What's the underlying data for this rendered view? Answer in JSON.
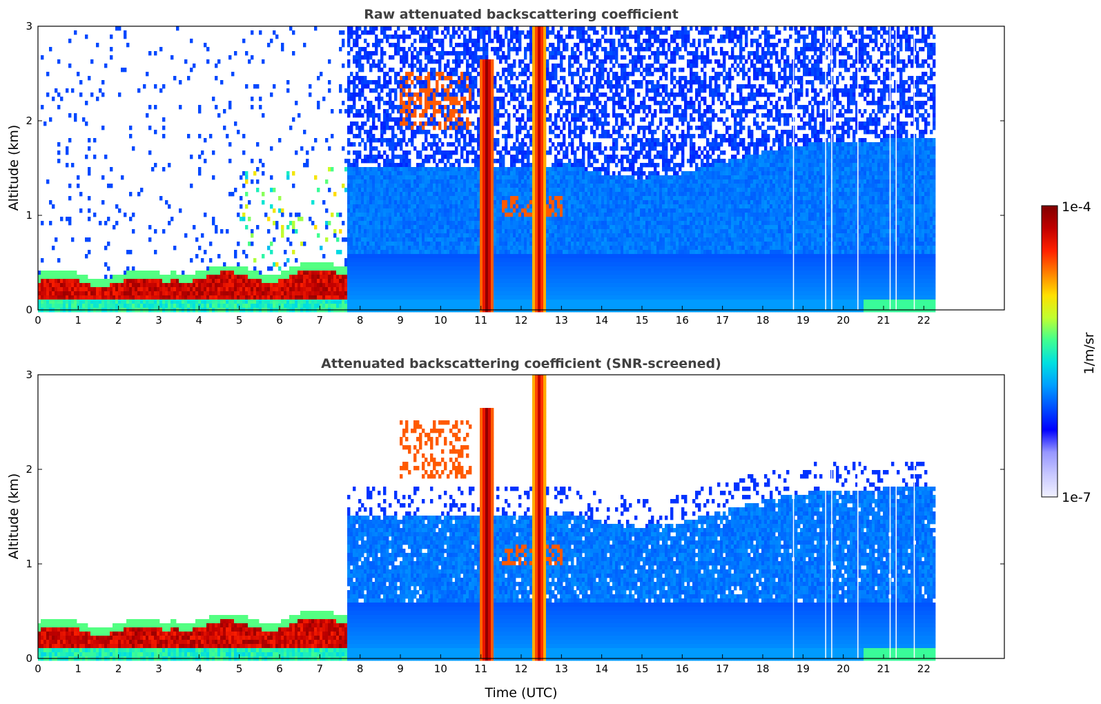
{
  "chart_data": [
    {
      "type": "heatmap",
      "title": "Raw attenuated backscattering coefficient",
      "xlabel": "",
      "ylabel": "Altitude (km)",
      "xlim": [
        0,
        24
      ],
      "ylim": [
        0,
        3
      ],
      "xticks": [
        0,
        1,
        2,
        3,
        4,
        5,
        6,
        7,
        8,
        9,
        10,
        11,
        12,
        13,
        14,
        15,
        16,
        17,
        18,
        19,
        20,
        21,
        22
      ],
      "yticks": [
        0,
        1,
        2,
        3
      ],
      "data_end_hour": 22.3,
      "features": [
        {
          "name": "boundary-layer-aerosol",
          "start": 0,
          "end": 7.6,
          "base_km": 0.1,
          "top_km": 0.35,
          "level": "high"
        },
        {
          "name": "rain-column-1",
          "start": 11.0,
          "end": 11.3,
          "top_km": 2.6,
          "level": "very-high"
        },
        {
          "name": "rain-column-2",
          "start": 12.3,
          "end": 12.6,
          "top_km": 3.0,
          "level": "very-high"
        },
        {
          "name": "mid-cloud-layer",
          "start": 9.0,
          "end": 10.8,
          "base_km": 1.9,
          "top_km": 2.5,
          "level": "high"
        },
        {
          "name": "low-cloud",
          "start": 11.5,
          "end": 13.0,
          "base_km": 1.0,
          "top_km": 1.2,
          "level": "high"
        }
      ]
    },
    {
      "type": "heatmap",
      "title": "Attenuated backscattering coefficient (SNR-screened)",
      "xlabel": "Time (UTC)",
      "ylabel": "Altitude (km)",
      "xlim": [
        0,
        24
      ],
      "ylim": [
        0,
        3
      ],
      "xticks": [
        0,
        1,
        2,
        3,
        4,
        5,
        6,
        7,
        8,
        9,
        10,
        11,
        12,
        13,
        14,
        15,
        16,
        17,
        18,
        19,
        20,
        21,
        22
      ],
      "yticks": [
        0,
        1,
        2,
        3
      ],
      "data_end_hour": 22.3,
      "screened_top_km": 1.8
    }
  ],
  "colorbar": {
    "label": "1/m/sr",
    "min_label": "1e-7",
    "max_label": "1e-4",
    "colors": [
      "#f0f0ff",
      "#c8c8ff",
      "#9696ff",
      "#0000ff",
      "#0050ff",
      "#00a0ff",
      "#00e0e0",
      "#40ff90",
      "#c0ff30",
      "#ffe000",
      "#ff8000",
      "#ff2000",
      "#c00000",
      "#800000"
    ]
  }
}
